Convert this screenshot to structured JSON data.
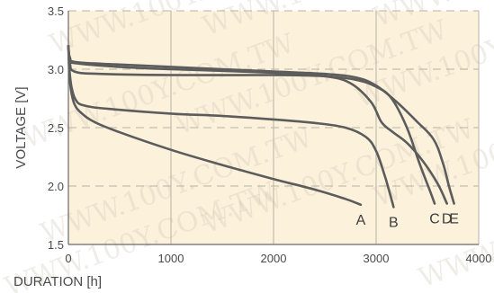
{
  "chart_data": {
    "type": "line",
    "title": "",
    "xlabel": "DURATION [h]",
    "ylabel": "VOLTAGE [V]",
    "xlim": [
      0,
      4000
    ],
    "ylim": [
      1.5,
      3.5
    ],
    "x_ticks": [
      "0",
      "1000",
      "2000",
      "3000",
      "4000"
    ],
    "y_ticks": [
      "1.5",
      "2.0",
      "2.5",
      "3.0",
      "3.5"
    ],
    "grid": true,
    "legend": "none",
    "watermark": "WWW.100Y.COM.TW",
    "colors": {
      "plot_background": "#fcf1db",
      "curve": "#5c5c5c",
      "grid_vertical": "#b9b2a4",
      "grid_horizontal": "#b9b2a4"
    },
    "series": [
      {
        "name": "A",
        "points": [
          [
            0,
            3.2
          ],
          [
            10,
            2.95
          ],
          [
            30,
            2.8
          ],
          [
            60,
            2.7
          ],
          [
            120,
            2.63
          ],
          [
            250,
            2.55
          ],
          [
            500,
            2.46
          ],
          [
            1000,
            2.31
          ],
          [
            1500,
            2.18
          ],
          [
            2000,
            2.06
          ],
          [
            2400,
            1.97
          ],
          [
            2700,
            1.89
          ],
          [
            2850,
            1.84
          ]
        ]
      },
      {
        "name": "B",
        "points": [
          [
            0,
            3.2
          ],
          [
            10,
            3.0
          ],
          [
            30,
            2.85
          ],
          [
            70,
            2.74
          ],
          [
            150,
            2.69
          ],
          [
            400,
            2.66
          ],
          [
            1000,
            2.62
          ],
          [
            1500,
            2.6
          ],
          [
            2000,
            2.57
          ],
          [
            2400,
            2.54
          ],
          [
            2700,
            2.5
          ],
          [
            2900,
            2.42
          ],
          [
            3000,
            2.3
          ],
          [
            3080,
            2.1
          ],
          [
            3130,
            1.95
          ],
          [
            3170,
            1.82
          ]
        ]
      },
      {
        "name": "C",
        "points": [
          [
            0,
            3.2
          ],
          [
            15,
            3.05
          ],
          [
            60,
            2.98
          ],
          [
            300,
            2.96
          ],
          [
            1000,
            2.95
          ],
          [
            2000,
            2.95
          ],
          [
            2500,
            2.94
          ],
          [
            2800,
            2.91
          ],
          [
            3000,
            2.85
          ],
          [
            3150,
            2.75
          ],
          [
            3300,
            2.5
          ],
          [
            3420,
            2.2
          ],
          [
            3520,
            1.97
          ],
          [
            3570,
            1.85
          ]
        ]
      },
      {
        "name": "D",
        "points": [
          [
            0,
            3.2
          ],
          [
            15,
            3.08
          ],
          [
            80,
            3.05
          ],
          [
            500,
            3.02
          ],
          [
            1000,
            3.0
          ],
          [
            2000,
            2.97
          ],
          [
            2500,
            2.94
          ],
          [
            2750,
            2.88
          ],
          [
            2950,
            2.72
          ],
          [
            3050,
            2.55
          ],
          [
            3150,
            2.47
          ],
          [
            3300,
            2.37
          ],
          [
            3450,
            2.22
          ],
          [
            3600,
            2.02
          ],
          [
            3690,
            1.85
          ]
        ]
      },
      {
        "name": "E",
        "points": [
          [
            0,
            3.2
          ],
          [
            15,
            3.1
          ],
          [
            80,
            3.06
          ],
          [
            500,
            3.04
          ],
          [
            1000,
            3.02
          ],
          [
            2000,
            2.98
          ],
          [
            2500,
            2.96
          ],
          [
            2800,
            2.93
          ],
          [
            3000,
            2.86
          ],
          [
            3200,
            2.72
          ],
          [
            3400,
            2.55
          ],
          [
            3560,
            2.4
          ],
          [
            3650,
            2.2
          ],
          [
            3710,
            2.0
          ],
          [
            3760,
            1.85
          ]
        ]
      }
    ],
    "curve_labels": [
      "A",
      "B",
      "C",
      "D",
      "E"
    ]
  }
}
